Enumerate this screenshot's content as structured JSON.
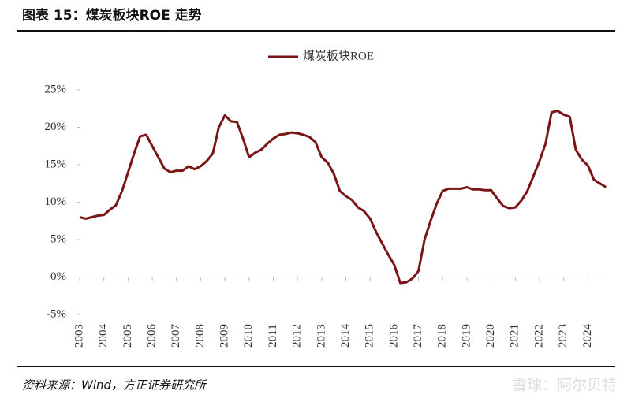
{
  "chart_data": {
    "type": "line",
    "title": "图表 15：煤炭板块ROE 走势",
    "source": "资料来源：Wind，方正证券研究所",
    "watermark": "雪球：阿尔贝特",
    "x": [
      2003,
      2003.25,
      2003.5,
      2003.75,
      2004,
      2004.25,
      2004.5,
      2004.75,
      2005,
      2005.25,
      2005.5,
      2005.75,
      2006,
      2006.25,
      2006.5,
      2006.75,
      2007,
      2007.25,
      2007.5,
      2007.75,
      2008,
      2008.25,
      2008.5,
      2008.75,
      2009,
      2009.25,
      2009.5,
      2009.75,
      2010,
      2010.25,
      2010.5,
      2010.75,
      2011,
      2011.25,
      2011.5,
      2011.75,
      2012,
      2012.25,
      2012.5,
      2012.75,
      2013,
      2013.25,
      2013.5,
      2013.75,
      2014,
      2014.25,
      2014.5,
      2014.75,
      2015,
      2015.25,
      2015.5,
      2015.75,
      2016,
      2016.25,
      2016.5,
      2016.75,
      2017,
      2017.25,
      2017.5,
      2017.75,
      2018,
      2018.25,
      2018.5,
      2018.75,
      2019,
      2019.25,
      2019.5,
      2019.75,
      2020,
      2020.25,
      2020.5,
      2020.75,
      2021,
      2021.25,
      2021.5,
      2021.75,
      2022,
      2022.25,
      2022.5,
      2022.75,
      2023,
      2023.25,
      2023.5,
      2023.75,
      2024,
      2024.25,
      2024.5,
      2024.75
    ],
    "series": [
      {
        "name": "煤炭板块ROE",
        "color": "#7b1416",
        "values": [
          8.0,
          7.8,
          8.0,
          8.2,
          8.3,
          9.0,
          9.6,
          11.5,
          14.0,
          16.5,
          18.8,
          19.0,
          17.5,
          16.0,
          14.5,
          14.0,
          14.2,
          14.2,
          14.8,
          14.4,
          14.8,
          15.5,
          16.5,
          20.0,
          21.6,
          20.8,
          20.7,
          18.5,
          16.0,
          16.6,
          17.0,
          17.8,
          18.5,
          19.0,
          19.1,
          19.3,
          19.2,
          19.0,
          18.7,
          18.0,
          16.0,
          15.3,
          13.8,
          11.5,
          10.8,
          10.3,
          9.3,
          8.8,
          7.8,
          6.0,
          4.5,
          3.0,
          1.6,
          -0.8,
          -0.7,
          -0.2,
          0.8,
          5.0,
          7.5,
          9.8,
          11.5,
          11.8,
          11.8,
          11.8,
          12.0,
          11.7,
          11.7,
          11.6,
          11.6,
          10.5,
          9.5,
          9.2,
          9.3,
          10.2,
          11.5,
          13.5,
          15.5,
          17.8,
          22.0,
          22.2,
          21.7,
          21.4,
          17.0,
          15.7,
          14.9,
          13.0,
          12.5,
          12.0
        ]
      }
    ],
    "xlim": [
      2003,
      2025
    ],
    "xticks": [
      2003,
      2004,
      2005,
      2006,
      2007,
      2008,
      2009,
      2010,
      2011,
      2012,
      2013,
      2014,
      2015,
      2016,
      2017,
      2018,
      2019,
      2020,
      2021,
      2022,
      2023,
      2024
    ],
    "ylim": [
      -5,
      25
    ],
    "yticks": [
      {
        "value": -5,
        "label": "-5%"
      },
      {
        "value": 0,
        "label": "0%"
      },
      {
        "value": 5,
        "label": "5%"
      },
      {
        "value": 10,
        "label": "10%"
      },
      {
        "value": 15,
        "label": "15%"
      },
      {
        "value": 20,
        "label": "20%"
      },
      {
        "value": 25,
        "label": "25%"
      }
    ],
    "legend": "top"
  }
}
